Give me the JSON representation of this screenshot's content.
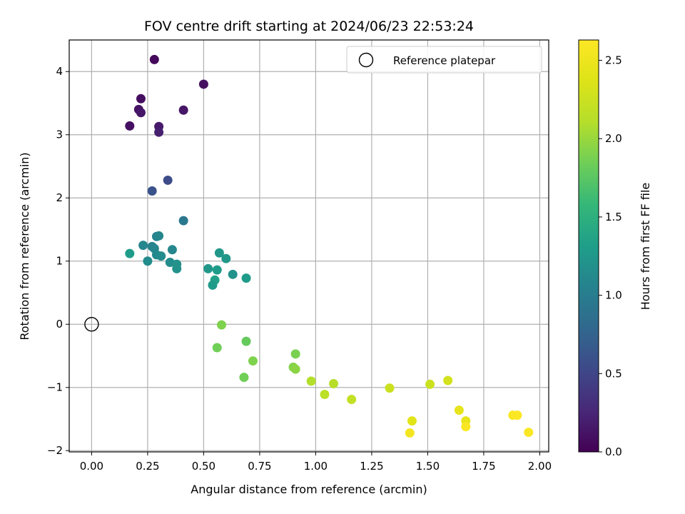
{
  "chart_data": {
    "type": "scatter",
    "title": "FOV centre drift starting at 2024/06/23 22:53:24",
    "xlabel": "Angular distance from reference (arcmin)",
    "ylabel": "Rotation from reference (arcmin)",
    "xlim": [
      -0.1,
      2.04
    ],
    "ylim": [
      -2.02,
      4.5
    ],
    "xticks": [
      0.0,
      0.25,
      0.5,
      0.75,
      1.0,
      1.25,
      1.5,
      1.75,
      2.0
    ],
    "xtick_labels": [
      "0.00",
      "0.25",
      "0.50",
      "0.75",
      "1.00",
      "1.25",
      "1.50",
      "1.75",
      "2.00"
    ],
    "yticks": [
      -2,
      -1,
      0,
      1,
      2,
      3,
      4
    ],
    "ytick_labels": [
      "−2",
      "−1",
      "0",
      "1",
      "2",
      "3",
      "4"
    ],
    "grid": true,
    "legend": {
      "placement": "top-right",
      "entries": [
        "Reference platepar"
      ]
    },
    "reference_point": {
      "x": 0.0,
      "y": 0.0
    },
    "colorbar": {
      "label": "Hours from first FF file",
      "colormap": "viridis",
      "range": [
        0.0,
        2.63
      ],
      "ticks": [
        0.0,
        0.5,
        1.0,
        1.5,
        2.0,
        2.5
      ],
      "tick_labels": [
        "0.0",
        "0.5",
        "1.0",
        "1.5",
        "2.0",
        "2.5"
      ]
    },
    "points": [
      {
        "x": 0.28,
        "y": 4.19,
        "c": 0.05
      },
      {
        "x": 0.5,
        "y": 3.8,
        "c": 0.1
      },
      {
        "x": 0.22,
        "y": 3.57,
        "c": 0.08
      },
      {
        "x": 0.21,
        "y": 3.4,
        "c": 0.12
      },
      {
        "x": 0.22,
        "y": 3.35,
        "c": 0.15
      },
      {
        "x": 0.41,
        "y": 3.39,
        "c": 0.14
      },
      {
        "x": 0.3,
        "y": 3.13,
        "c": 0.17
      },
      {
        "x": 0.3,
        "y": 3.04,
        "c": 0.2
      },
      {
        "x": 0.17,
        "y": 3.14,
        "c": 0.1
      },
      {
        "x": 0.34,
        "y": 2.28,
        "c": 0.55
      },
      {
        "x": 0.27,
        "y": 2.11,
        "c": 0.6
      },
      {
        "x": 0.41,
        "y": 1.64,
        "c": 0.95
      },
      {
        "x": 0.29,
        "y": 1.39,
        "c": 1.05
      },
      {
        "x": 0.3,
        "y": 1.4,
        "c": 1.1
      },
      {
        "x": 0.23,
        "y": 1.25,
        "c": 1.1
      },
      {
        "x": 0.27,
        "y": 1.23,
        "c": 1.05
      },
      {
        "x": 0.28,
        "y": 1.2,
        "c": 1.1
      },
      {
        "x": 0.36,
        "y": 1.18,
        "c": 1.1
      },
      {
        "x": 0.17,
        "y": 1.12,
        "c": 1.3
      },
      {
        "x": 0.29,
        "y": 1.1,
        "c": 1.12
      },
      {
        "x": 0.31,
        "y": 1.08,
        "c": 1.15
      },
      {
        "x": 0.25,
        "y": 1.0,
        "c": 1.15
      },
      {
        "x": 0.35,
        "y": 0.98,
        "c": 1.15
      },
      {
        "x": 0.38,
        "y": 0.95,
        "c": 1.2
      },
      {
        "x": 0.38,
        "y": 0.88,
        "c": 1.2
      },
      {
        "x": 0.57,
        "y": 1.13,
        "c": 1.25
      },
      {
        "x": 0.6,
        "y": 1.04,
        "c": 1.25
      },
      {
        "x": 0.52,
        "y": 0.88,
        "c": 1.25
      },
      {
        "x": 0.56,
        "y": 0.86,
        "c": 1.3
      },
      {
        "x": 0.63,
        "y": 0.79,
        "c": 1.2
      },
      {
        "x": 0.69,
        "y": 0.73,
        "c": 1.3
      },
      {
        "x": 0.55,
        "y": 0.7,
        "c": 1.35
      },
      {
        "x": 0.54,
        "y": 0.62,
        "c": 1.3
      },
      {
        "x": 0.58,
        "y": -0.01,
        "c": 1.9
      },
      {
        "x": 0.69,
        "y": -0.27,
        "c": 1.8
      },
      {
        "x": 0.56,
        "y": -0.37,
        "c": 1.85
      },
      {
        "x": 0.91,
        "y": -0.47,
        "c": 1.88
      },
      {
        "x": 0.72,
        "y": -0.58,
        "c": 1.9
      },
      {
        "x": 0.9,
        "y": -0.68,
        "c": 1.92
      },
      {
        "x": 0.91,
        "y": -0.71,
        "c": 1.95
      },
      {
        "x": 0.68,
        "y": -0.84,
        "c": 1.85
      },
      {
        "x": 0.98,
        "y": -0.9,
        "c": 2.1
      },
      {
        "x": 1.08,
        "y": -0.94,
        "c": 2.12
      },
      {
        "x": 1.04,
        "y": -1.11,
        "c": 2.15
      },
      {
        "x": 1.16,
        "y": -1.19,
        "c": 2.2
      },
      {
        "x": 1.33,
        "y": -1.01,
        "c": 2.25
      },
      {
        "x": 1.51,
        "y": -0.95,
        "c": 2.25
      },
      {
        "x": 1.59,
        "y": -0.89,
        "c": 2.3
      },
      {
        "x": 1.43,
        "y": -1.53,
        "c": 2.4
      },
      {
        "x": 1.42,
        "y": -1.72,
        "c": 2.55
      },
      {
        "x": 1.64,
        "y": -1.36,
        "c": 2.45
      },
      {
        "x": 1.67,
        "y": -1.53,
        "c": 2.45
      },
      {
        "x": 1.67,
        "y": -1.62,
        "c": 2.6
      },
      {
        "x": 1.88,
        "y": -1.44,
        "c": 2.6
      },
      {
        "x": 1.9,
        "y": -1.44,
        "c": 2.62
      },
      {
        "x": 1.95,
        "y": -1.71,
        "c": 2.6
      }
    ]
  }
}
